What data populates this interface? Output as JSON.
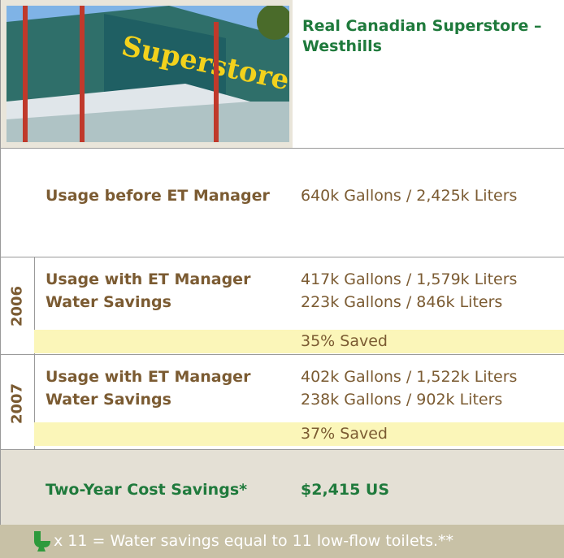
{
  "header": {
    "title": "Real Canadian Superstore – Westhills"
  },
  "baseline": {
    "label": "Usage before ET Manager",
    "value": "640k Gallons / 2,425k Liters"
  },
  "years": [
    {
      "year": "2006",
      "usage_label": "Usage with ET Manager",
      "usage_value": "417k Gallons / 1,579k Liters",
      "savings_label": "Water Savings",
      "savings_value": "223k Gallons / 846k Liters",
      "percent": "35% Saved"
    },
    {
      "year": "2007",
      "usage_label": "Usage with ET Manager",
      "usage_value": "402k Gallons / 1,522k Liters",
      "savings_label": "Water Savings",
      "savings_value": "238k Gallons / 902k Liters",
      "percent": "37% Saved"
    }
  ],
  "cost": {
    "label": "Two-Year Cost Savings*",
    "value": "$2,415 US"
  },
  "footer": {
    "text": "x 11 = Water savings equal to 11 low-flow toilets.**"
  }
}
